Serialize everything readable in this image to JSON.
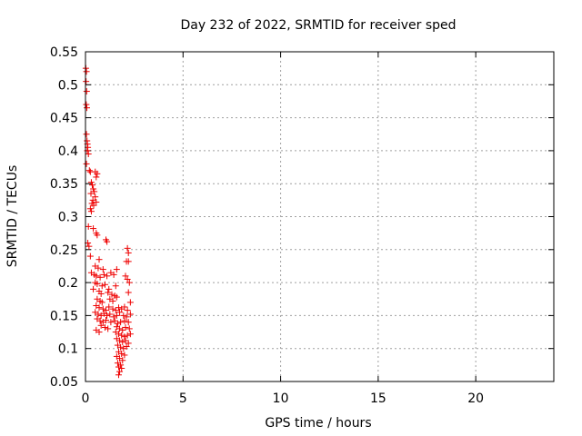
{
  "chart_data": {
    "type": "scatter",
    "title": "Day 232 of 2022, SRMTID for receiver sped",
    "xlabel": "GPS time / hours",
    "ylabel": "SRMTID / TECUs",
    "xlim": [
      0,
      24
    ],
    "ylim": [
      0.05,
      0.55
    ],
    "xticks": [
      0,
      5,
      10,
      15,
      20
    ],
    "xtick_labels": [
      "0",
      "5",
      "10",
      "15",
      "20"
    ],
    "yticks": [
      0.05,
      0.1,
      0.15,
      0.2,
      0.25,
      0.3,
      0.35,
      0.4,
      0.45,
      0.5,
      0.55
    ],
    "ytick_labels": [
      "0.05",
      "0.1",
      "0.15",
      "0.2",
      "0.25",
      "0.3",
      "0.35",
      "0.4",
      "0.45",
      "0.5",
      "0.55"
    ],
    "grid": true,
    "marker": "plus",
    "color": "#ee0000",
    "points": [
      [
        0.02,
        0.525
      ],
      [
        0.05,
        0.52
      ],
      [
        0.03,
        0.505
      ],
      [
        0.06,
        0.49
      ],
      [
        0.04,
        0.47
      ],
      [
        0.07,
        0.465
      ],
      [
        0.05,
        0.425
      ],
      [
        0.08,
        0.415
      ],
      [
        0.1,
        0.41
      ],
      [
        0.12,
        0.405
      ],
      [
        0.09,
        0.4
      ],
      [
        0.15,
        0.395
      ],
      [
        0.05,
        0.38
      ],
      [
        0.2,
        0.37
      ],
      [
        0.25,
        0.368
      ],
      [
        0.5,
        0.368
      ],
      [
        0.6,
        0.365
      ],
      [
        0.55,
        0.36
      ],
      [
        0.3,
        0.352
      ],
      [
        0.35,
        0.348
      ],
      [
        0.4,
        0.342
      ],
      [
        0.45,
        0.338
      ],
      [
        0.28,
        0.335
      ],
      [
        0.5,
        0.33
      ],
      [
        0.38,
        0.325
      ],
      [
        0.55,
        0.322
      ],
      [
        0.33,
        0.32
      ],
      [
        0.42,
        0.317
      ],
      [
        0.25,
        0.312
      ],
      [
        0.3,
        0.308
      ],
      [
        0.15,
        0.285
      ],
      [
        0.4,
        0.282
      ],
      [
        0.55,
        0.275
      ],
      [
        0.6,
        0.272
      ],
      [
        0.12,
        0.26
      ],
      [
        0.18,
        0.255
      ],
      [
        1.05,
        0.265
      ],
      [
        1.1,
        0.262
      ],
      [
        2.15,
        0.252
      ],
      [
        2.2,
        0.245
      ],
      [
        0.25,
        0.24
      ],
      [
        0.7,
        0.235
      ],
      [
        2.1,
        0.232
      ],
      [
        2.2,
        0.232
      ],
      [
        0.5,
        0.225
      ],
      [
        0.65,
        0.222
      ],
      [
        0.9,
        0.22
      ],
      [
        1.6,
        0.22
      ],
      [
        0.3,
        0.215
      ],
      [
        0.45,
        0.212
      ],
      [
        0.55,
        0.21
      ],
      [
        0.75,
        0.208
      ],
      [
        0.95,
        0.212
      ],
      [
        1.1,
        0.21
      ],
      [
        1.3,
        0.215
      ],
      [
        1.45,
        0.212
      ],
      [
        2.05,
        0.21
      ],
      [
        2.15,
        0.205
      ],
      [
        2.25,
        0.2
      ],
      [
        0.5,
        0.2
      ],
      [
        0.6,
        0.198
      ],
      [
        0.85,
        0.195
      ],
      [
        1.0,
        0.197
      ],
      [
        1.2,
        0.19
      ],
      [
        1.55,
        0.195
      ],
      [
        0.4,
        0.19
      ],
      [
        0.7,
        0.187
      ],
      [
        0.8,
        0.183
      ],
      [
        1.15,
        0.185
      ],
      [
        1.35,
        0.182
      ],
      [
        1.5,
        0.18
      ],
      [
        1.6,
        0.178
      ],
      [
        2.2,
        0.185
      ],
      [
        0.6,
        0.175
      ],
      [
        0.75,
        0.172
      ],
      [
        0.85,
        0.17
      ],
      [
        1.25,
        0.175
      ],
      [
        1.4,
        0.172
      ],
      [
        2.3,
        0.17
      ],
      [
        0.55,
        0.165
      ],
      [
        0.7,
        0.162
      ],
      [
        0.9,
        0.16
      ],
      [
        1.05,
        0.158
      ],
      [
        1.2,
        0.163
      ],
      [
        1.4,
        0.16
      ],
      [
        1.55,
        0.158
      ],
      [
        1.7,
        0.162
      ],
      [
        1.85,
        0.16
      ],
      [
        2.0,
        0.163
      ],
      [
        2.15,
        0.158
      ],
      [
        0.5,
        0.155
      ],
      [
        0.65,
        0.152
      ],
      [
        0.8,
        0.15
      ],
      [
        0.95,
        0.153
      ],
      [
        1.1,
        0.15
      ],
      [
        1.25,
        0.152
      ],
      [
        1.45,
        0.148
      ],
      [
        1.6,
        0.15
      ],
      [
        1.75,
        0.155
      ],
      [
        1.95,
        0.15
      ],
      [
        2.1,
        0.148
      ],
      [
        2.3,
        0.152
      ],
      [
        0.6,
        0.145
      ],
      [
        0.75,
        0.142
      ],
      [
        0.9,
        0.14
      ],
      [
        1.05,
        0.143
      ],
      [
        1.3,
        0.14
      ],
      [
        1.5,
        0.142
      ],
      [
        1.65,
        0.138
      ],
      [
        1.8,
        0.14
      ],
      [
        2.0,
        0.142
      ],
      [
        2.2,
        0.14
      ],
      [
        0.8,
        0.135
      ],
      [
        1.0,
        0.132
      ],
      [
        1.15,
        0.13
      ],
      [
        1.6,
        0.133
      ],
      [
        1.75,
        0.13
      ],
      [
        1.9,
        0.128
      ],
      [
        2.05,
        0.132
      ],
      [
        2.25,
        0.13
      ],
      [
        0.55,
        0.128
      ],
      [
        0.7,
        0.125
      ],
      [
        1.55,
        0.125
      ],
      [
        1.7,
        0.122
      ],
      [
        1.85,
        0.12
      ],
      [
        2.0,
        0.118
      ],
      [
        2.15,
        0.12
      ],
      [
        2.3,
        0.122
      ],
      [
        1.6,
        0.115
      ],
      [
        1.75,
        0.112
      ],
      [
        1.9,
        0.11
      ],
      [
        2.05,
        0.112
      ],
      [
        2.2,
        0.108
      ],
      [
        1.65,
        0.105
      ],
      [
        1.8,
        0.102
      ],
      [
        1.95,
        0.1
      ],
      [
        2.1,
        0.103
      ],
      [
        1.7,
        0.095
      ],
      [
        1.85,
        0.092
      ],
      [
        2.0,
        0.09
      ],
      [
        1.6,
        0.088
      ],
      [
        1.75,
        0.085
      ],
      [
        1.9,
        0.082
      ],
      [
        1.65,
        0.078
      ],
      [
        1.8,
        0.075
      ],
      [
        1.7,
        0.072
      ],
      [
        1.85,
        0.07
      ],
      [
        1.75,
        0.065
      ],
      [
        1.7,
        0.06
      ]
    ]
  }
}
